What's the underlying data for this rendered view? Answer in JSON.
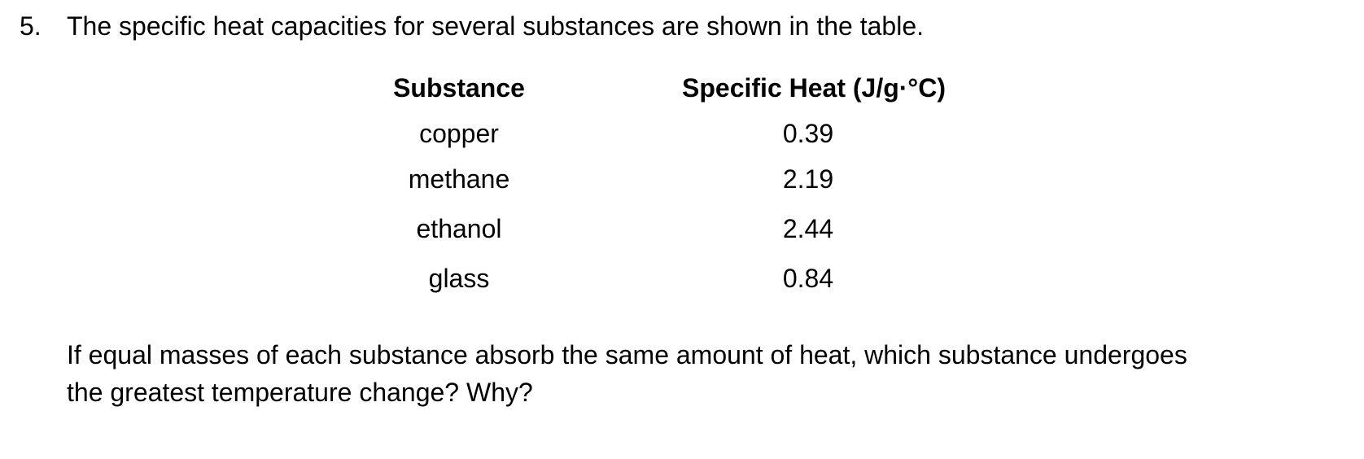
{
  "question": {
    "number": "5.",
    "stem": "The specific heat capacities for several substances are shown in the table.",
    "prompt_lines": [
      "If equal masses of each substance absorb the same amount of heat, which substance undergoes",
      "the greatest temperature change?  Why?"
    ]
  },
  "table": {
    "headers": [
      "Substance",
      "Specific Heat (J/g·°C)"
    ],
    "rows": [
      [
        "copper",
        "0.39"
      ],
      [
        "methane",
        "2.19"
      ],
      [
        "ethanol",
        "2.44"
      ],
      [
        "glass",
        "0.84"
      ]
    ]
  }
}
